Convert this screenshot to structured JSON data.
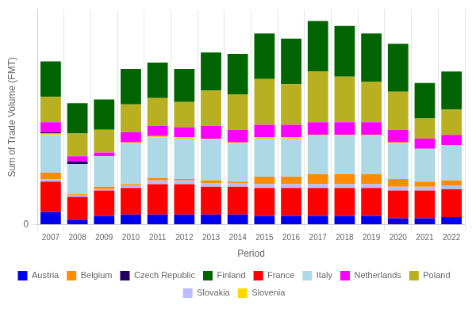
{
  "chart_data": {
    "type": "bar",
    "stacked": true,
    "xlabel": "Period",
    "ylabel": "Sum of Trade Volume (FMT)",
    "categories": [
      "2007",
      "2008",
      "2009",
      "2010",
      "2011",
      "2012",
      "2013",
      "2014",
      "2015",
      "2016",
      "2017",
      "2018",
      "2019",
      "2020",
      "2021",
      "2022"
    ],
    "series": [
      {
        "name": "Austria",
        "color": "#0000EE",
        "values": [
          5000,
          2000,
          3500,
          4000,
          4000,
          4000,
          4000,
          4000,
          3500,
          3500,
          3500,
          3500,
          3500,
          2500,
          2500,
          3000
        ]
      },
      {
        "name": "France",
        "color": "#FF0000",
        "values": [
          12000,
          9000,
          10000,
          10500,
          12000,
          12000,
          11000,
          11000,
          11000,
          11000,
          11000,
          11000,
          11000,
          11000,
          11000,
          11000
        ]
      },
      {
        "name": "Slovakia",
        "color": "#BBBBFF",
        "values": [
          1000,
          500,
          500,
          1000,
          1500,
          1500,
          1500,
          1500,
          1500,
          1500,
          1500,
          1500,
          1500,
          1500,
          1500,
          1500
        ]
      },
      {
        "name": "Belgium",
        "color": "#FF8C00",
        "values": [
          2500,
          500,
          1000,
          500,
          1000,
          500,
          1000,
          500,
          3000,
          3000,
          4000,
          4000,
          4000,
          3000,
          2000,
          2000
        ]
      },
      {
        "name": "Italy",
        "color": "#ADD8E6",
        "values": [
          15000,
          12000,
          12000,
          16000,
          16000,
          16000,
          16000,
          15000,
          15000,
          15000,
          15000,
          15000,
          15000,
          14000,
          13000,
          14000
        ]
      },
      {
        "name": "Slovenia",
        "color": "#FFD700",
        "values": [
          500,
          0,
          0,
          500,
          500,
          500,
          500,
          500,
          500,
          500,
          500,
          500,
          500,
          500,
          0,
          0
        ]
      },
      {
        "name": "Czech Republic",
        "color": "#200060",
        "values": [
          500,
          1000,
          0,
          0,
          0,
          0,
          0,
          0,
          0,
          0,
          0,
          0,
          0,
          0,
          0,
          0
        ]
      },
      {
        "name": "Netherlands",
        "color": "#FF00FF",
        "values": [
          4000,
          2000,
          1500,
          4000,
          4000,
          4000,
          5000,
          5000,
          5000,
          5000,
          5000,
          5000,
          5000,
          5000,
          4000,
          4000
        ]
      },
      {
        "name": "Poland",
        "color": "#B8B020",
        "values": [
          10000,
          9000,
          9000,
          11000,
          11000,
          10000,
          14000,
          14000,
          18000,
          16000,
          20000,
          18000,
          16000,
          15000,
          8000,
          10000
        ]
      },
      {
        "name": "Finland",
        "color": "#006400",
        "values": [
          14000,
          12000,
          12000,
          14000,
          14000,
          13000,
          15000,
          16000,
          18000,
          18000,
          20000,
          20000,
          19000,
          19000,
          14000,
          15000
        ]
      }
    ],
    "ylim": [
      0,
      85000
    ],
    "yticks": [
      0
    ],
    "grid": true,
    "legend": "bottom"
  }
}
